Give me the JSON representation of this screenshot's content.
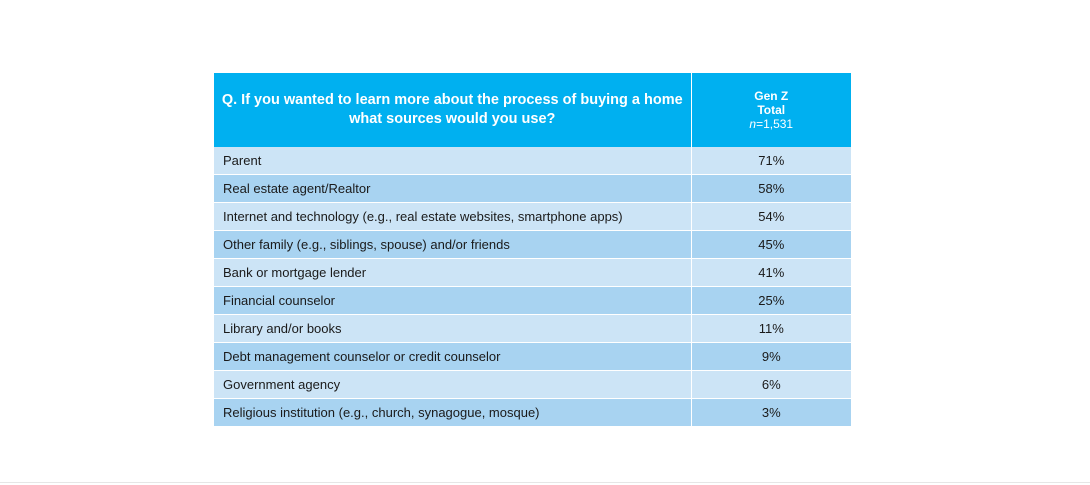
{
  "table": {
    "question": "Q. If you wanted to learn more about the process of buying a home what sources would you use?",
    "column": {
      "line1": "Gen Z",
      "line2": "Total",
      "n_label": "n",
      "n_value": "=1,531"
    },
    "rows": [
      {
        "label": "Parent",
        "value": "71%"
      },
      {
        "label": "Real estate agent/Realtor",
        "value": "58%"
      },
      {
        "label": "Internet and technology (e.g., real estate websites, smartphone apps)",
        "value": "54%"
      },
      {
        "label": "Other family (e.g., siblings, spouse) and/or friends",
        "value": "45%"
      },
      {
        "label": "Bank or mortgage lender",
        "value": "41%"
      },
      {
        "label": "Financial counselor",
        "value": "25%"
      },
      {
        "label": "Library and/or books",
        "value": "11%"
      },
      {
        "label": "Debt management counselor or credit counselor",
        "value": "9%"
      },
      {
        "label": "Government agency",
        "value": "6%"
      },
      {
        "label": "Religious institution (e.g., church, synagogue, mosque)",
        "value": "3%"
      }
    ]
  },
  "colors": {
    "header": "#00b0f0",
    "row_light": "#cce4f6",
    "row_dark": "#a8d3f1"
  }
}
